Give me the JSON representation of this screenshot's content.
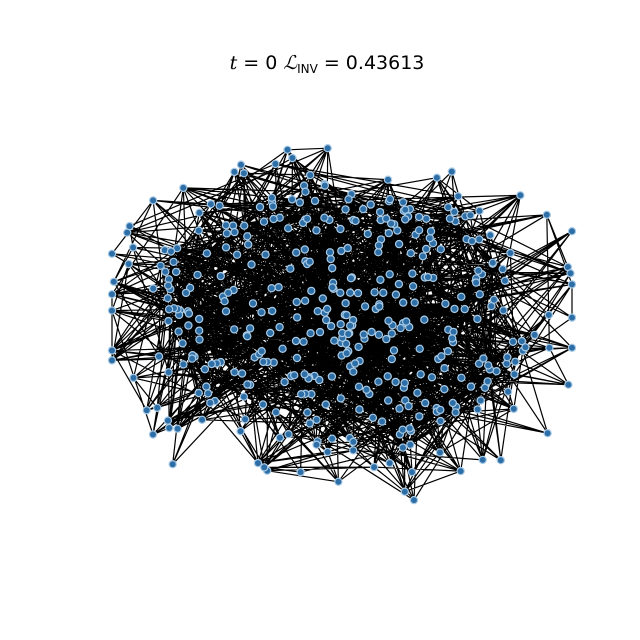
{
  "title": {
    "time_symbol": "t",
    "time_eq": " = 0",
    "loss_symbol": "ℒ",
    "loss_subscript": "INV",
    "loss_eq": " = 0.43613"
  },
  "graph": {
    "node_count": 420,
    "edge_count": 2300,
    "node_fill": "#2e6ea6",
    "node_stroke": "#a9cbe6",
    "edge_color": "#000000",
    "layout": "force-directed hairball",
    "seed": 7
  }
}
